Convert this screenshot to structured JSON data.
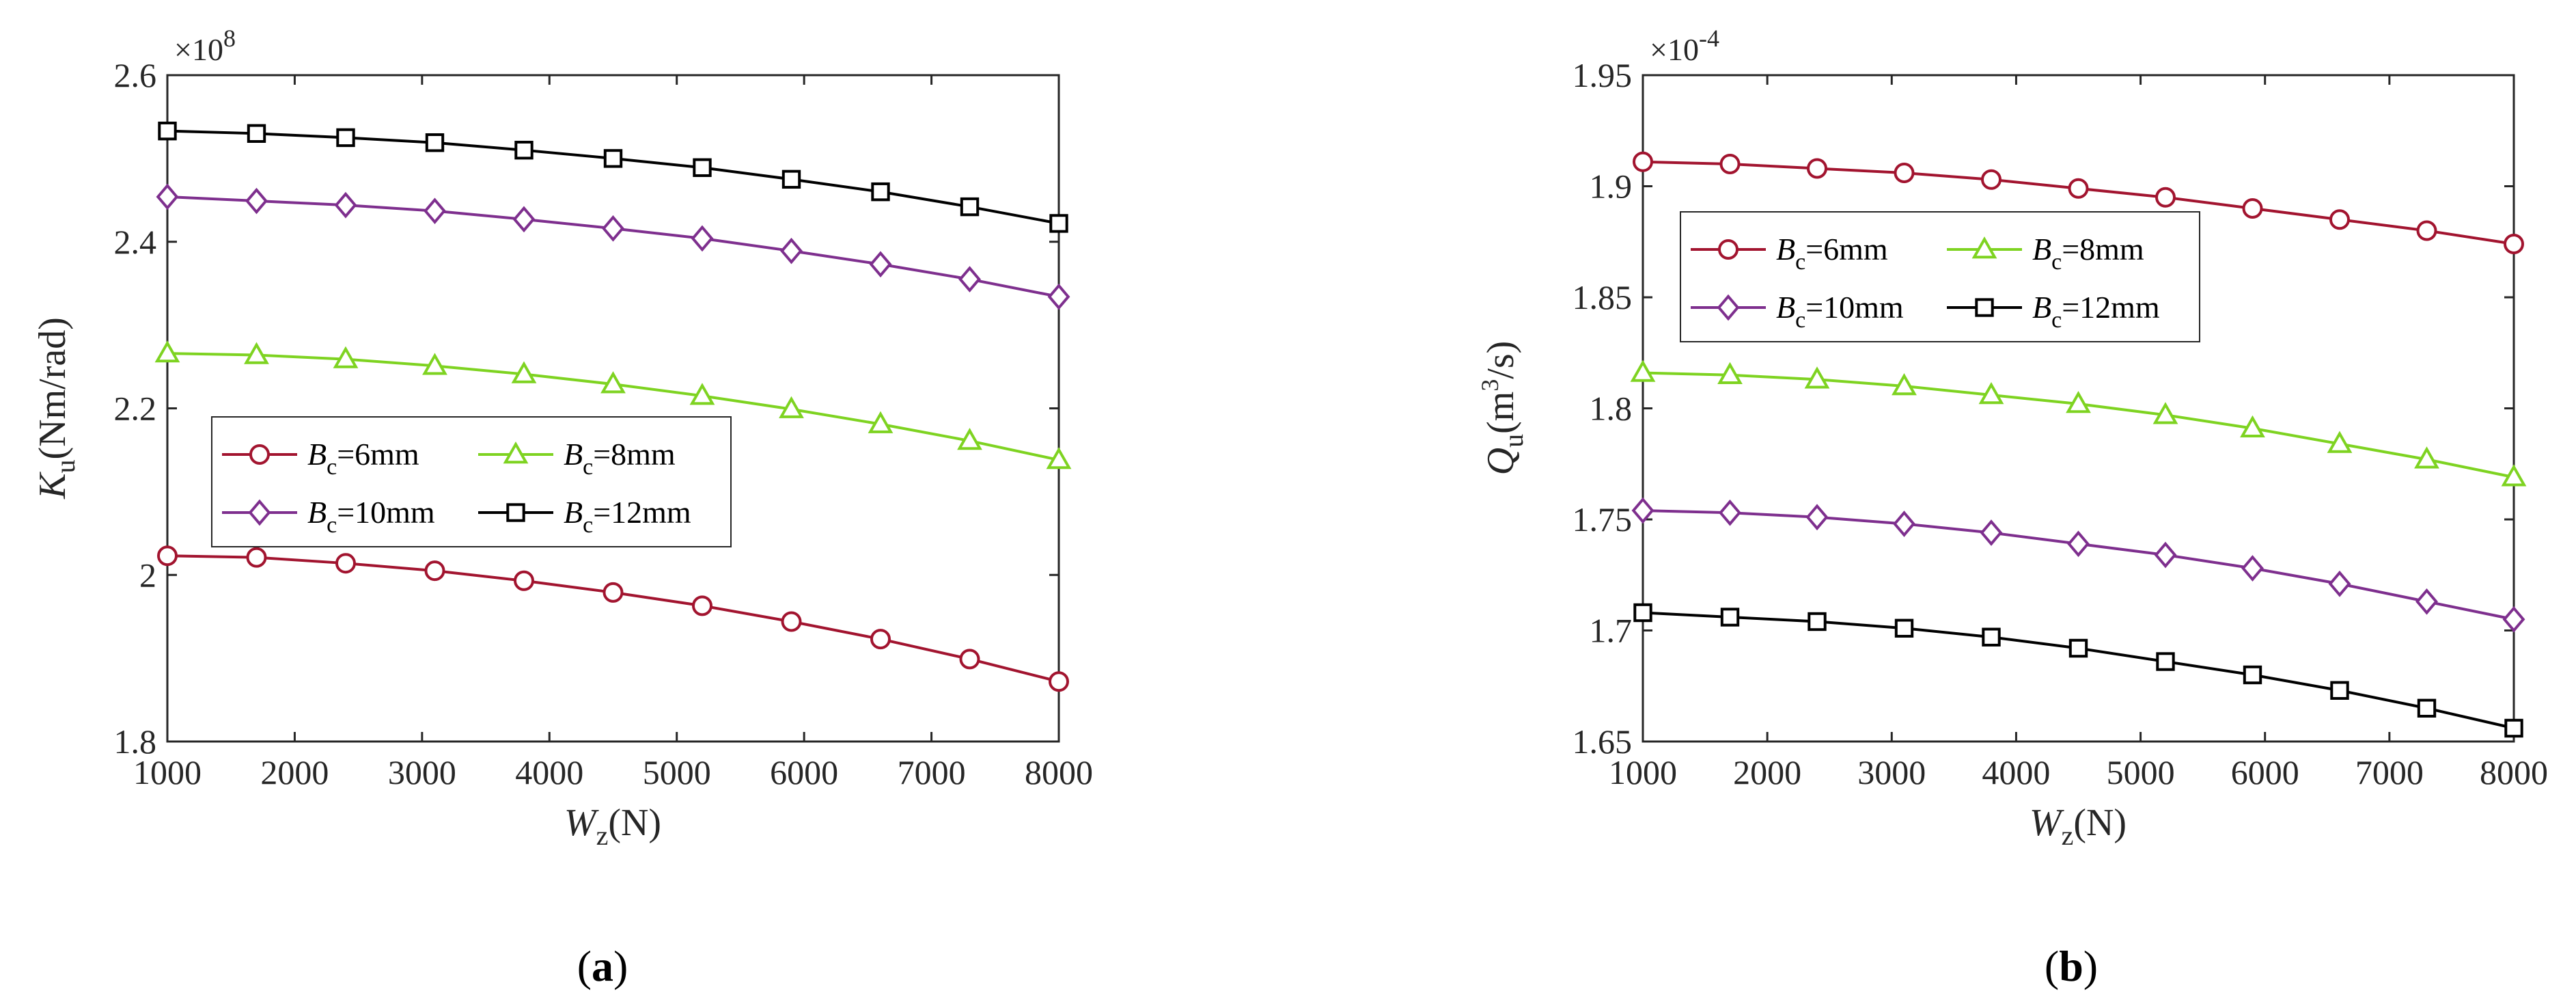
{
  "chart_data": [
    {
      "type": "line",
      "panel_label": "a",
      "x": [
        1000,
        1700,
        2400,
        3100,
        3800,
        4500,
        5200,
        5900,
        6600,
        7300,
        8000
      ],
      "xlim": [
        1000,
        8000
      ],
      "xticks": [
        1000,
        2000,
        3000,
        4000,
        5000,
        6000,
        7000,
        8000
      ],
      "ylim": [
        1.8,
        2.6
      ],
      "yticks": [
        1.8,
        2.0,
        2.2,
        2.4,
        2.6
      ],
      "ytick_labels": [
        "1.8",
        "2",
        "2.2",
        "2.4",
        "2.6"
      ],
      "y_exponent_base": "×10",
      "y_exponent": "8",
      "xlabel": {
        "symbol": "W",
        "subscript": "z",
        "unit": "(N)"
      },
      "ylabel": {
        "symbol": "K",
        "subscript": "u",
        "unit": "(Nm/rad)"
      },
      "series": [
        {
          "name": "Bc=6mm",
          "label_sym": "B",
          "label_sub": "c",
          "label_val": "=6mm",
          "marker": "circle",
          "color": "#a2142f",
          "values": [
            2.023,
            2.021,
            2.014,
            2.005,
            1.993,
            1.979,
            1.963,
            1.944,
            1.923,
            1.899,
            1.872
          ]
        },
        {
          "name": "Bc=8mm",
          "label_sym": "B",
          "label_sub": "c",
          "label_val": "=8mm",
          "marker": "triangle",
          "color": "#7ed321",
          "values": [
            2.266,
            2.264,
            2.259,
            2.251,
            2.241,
            2.229,
            2.215,
            2.199,
            2.181,
            2.161,
            2.138
          ]
        },
        {
          "name": "Bc=10mm",
          "label_sym": "B",
          "label_sub": "c",
          "label_val": "=10mm",
          "marker": "diamond",
          "color": "#7e2f8e",
          "values": [
            2.454,
            2.449,
            2.444,
            2.437,
            2.427,
            2.416,
            2.404,
            2.389,
            2.373,
            2.355,
            2.334
          ]
        },
        {
          "name": "Bc=12mm",
          "label_sym": "B",
          "label_sub": "c",
          "label_val": "=12mm",
          "marker": "square",
          "color": "#000000",
          "values": [
            2.533,
            2.53,
            2.525,
            2.519,
            2.51,
            2.5,
            2.489,
            2.475,
            2.46,
            2.442,
            2.422
          ]
        }
      ]
    },
    {
      "type": "line",
      "panel_label": "b",
      "x": [
        1000,
        1700,
        2400,
        3100,
        3800,
        4500,
        5200,
        5900,
        6600,
        7300,
        8000
      ],
      "xlim": [
        1000,
        8000
      ],
      "xticks": [
        1000,
        2000,
        3000,
        4000,
        5000,
        6000,
        7000,
        8000
      ],
      "ylim": [
        1.65,
        1.95
      ],
      "yticks": [
        1.65,
        1.7,
        1.75,
        1.8,
        1.85,
        1.9,
        1.95
      ],
      "ytick_labels": [
        "1.65",
        "1.7",
        "1.75",
        "1.8",
        "1.85",
        "1.9",
        "1.95"
      ],
      "y_exponent_base": "×10",
      "y_exponent": "-4",
      "xlabel": {
        "symbol": "W",
        "subscript": "z",
        "unit": "(N)"
      },
      "ylabel": {
        "symbol": "Q",
        "subscript": "u",
        "unit_pre": "(m",
        "unit_sup": "3",
        "unit_post": "/s)"
      },
      "series": [
        {
          "name": "Bc=6mm",
          "label_sym": "B",
          "label_sub": "c",
          "label_val": "=6mm",
          "marker": "circle",
          "color": "#a2142f",
          "values": [
            1.911,
            1.91,
            1.908,
            1.906,
            1.903,
            1.899,
            1.895,
            1.89,
            1.885,
            1.88,
            1.874
          ]
        },
        {
          "name": "Bc=8mm",
          "label_sym": "B",
          "label_sub": "c",
          "label_val": "=8mm",
          "marker": "triangle",
          "color": "#7ed321",
          "values": [
            1.816,
            1.815,
            1.813,
            1.81,
            1.806,
            1.802,
            1.797,
            1.791,
            1.784,
            1.777,
            1.769
          ]
        },
        {
          "name": "Bc=10mm",
          "label_sym": "B",
          "label_sub": "c",
          "label_val": "=10mm",
          "marker": "diamond",
          "color": "#7e2f8e",
          "values": [
            1.754,
            1.753,
            1.751,
            1.748,
            1.744,
            1.739,
            1.734,
            1.728,
            1.721,
            1.713,
            1.705
          ]
        },
        {
          "name": "Bc=12mm",
          "label_sym": "B",
          "label_sub": "c",
          "label_val": "=12mm",
          "marker": "square",
          "color": "#000000",
          "values": [
            1.708,
            1.706,
            1.704,
            1.701,
            1.697,
            1.692,
            1.686,
            1.68,
            1.673,
            1.665,
            1.656
          ]
        }
      ]
    }
  ]
}
